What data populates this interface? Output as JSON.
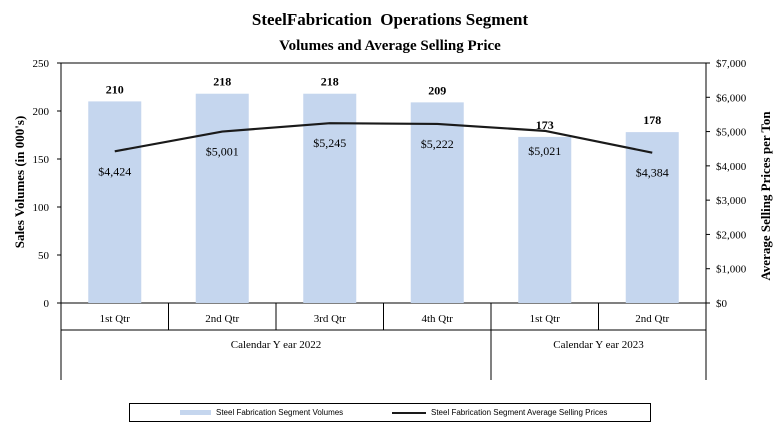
{
  "chart_data": {
    "type": "bar+line",
    "title": "SteelFabrication  Operations Segment",
    "subtitle": "Volumes and Average Selling Price",
    "categories": [
      "1st Qtr",
      "2nd Qtr",
      "3rd Qtr",
      "4th Qtr",
      "1st Qtr",
      "2nd Qtr"
    ],
    "groups": [
      {
        "label": "Calendar Y ear 2022",
        "span": 4
      },
      {
        "label": "Calendar Y ear 2023",
        "span": 2
      }
    ],
    "series": [
      {
        "name": "Steel Fabrication Segment Volumes",
        "kind": "bar",
        "axis": "left",
        "color": "#c5d6ee",
        "values": [
          210,
          218,
          218,
          209,
          173,
          178
        ],
        "labels": [
          "210",
          "218",
          "218",
          "209",
          "173",
          "178"
        ]
      },
      {
        "name": "Steel Fabrication Segment Average Selling Prices",
        "kind": "line",
        "axis": "right",
        "color": "#1a1a1a",
        "values": [
          4424,
          5001,
          5245,
          5222,
          5021,
          4384
        ],
        "labels": [
          "$4,424",
          "$5,001",
          "$5,245",
          "$5,222",
          "$5,021",
          "$4,384"
        ]
      }
    ],
    "ylabel": "Sales Volumes (in 000's)",
    "ylim": [
      0,
      250
    ],
    "yticks": [
      0,
      50,
      100,
      150,
      200,
      250
    ],
    "ytick_labels": [
      "0",
      "50",
      "100",
      "150",
      "200",
      "250"
    ],
    "y2label": "Average Selling Prices per Ton",
    "y2lim": [
      0,
      7000
    ],
    "y2ticks": [
      0,
      1000,
      2000,
      3000,
      4000,
      5000,
      6000,
      7000
    ],
    "y2tick_labels": [
      "$0",
      "$1,000",
      "$2,000",
      "$3,000",
      "$4,000",
      "$5,000",
      "$6,000",
      "$7,000"
    ],
    "grid": false,
    "legend_position": "bottom"
  }
}
